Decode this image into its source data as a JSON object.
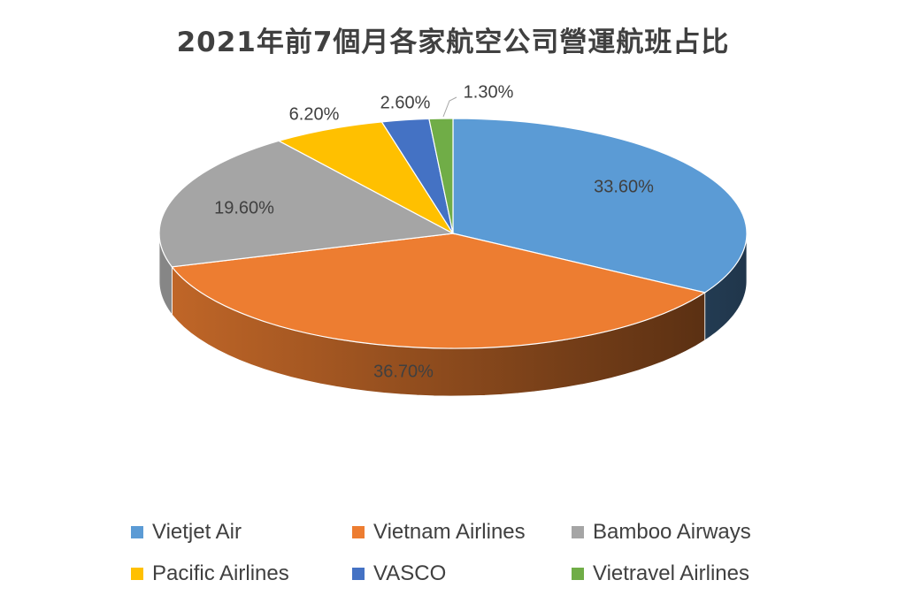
{
  "chart_data": {
    "type": "pie",
    "title": "2021年前7個月各家航空公司營運航班占比",
    "slices": [
      {
        "name": "Vietjet Air",
        "value": 33.6,
        "label": "33.60%",
        "color": "#5b9bd5"
      },
      {
        "name": "Vietnam Airlines",
        "value": 36.7,
        "label": "36.70%",
        "color": "#ed7d31"
      },
      {
        "name": "Bamboo Airways",
        "value": 19.6,
        "label": "19.60%",
        "color": "#a5a5a5"
      },
      {
        "name": "Pacific Airlines",
        "value": 6.2,
        "label": "6.20%",
        "color": "#ffc000"
      },
      {
        "name": "VASCO",
        "value": 2.6,
        "label": "2.60%",
        "color": "#4472c4"
      },
      {
        "name": "Vietravel Airlines",
        "value": 1.3,
        "label": "1.30%",
        "color": "#70ad47"
      }
    ],
    "legend_position": "bottom"
  }
}
